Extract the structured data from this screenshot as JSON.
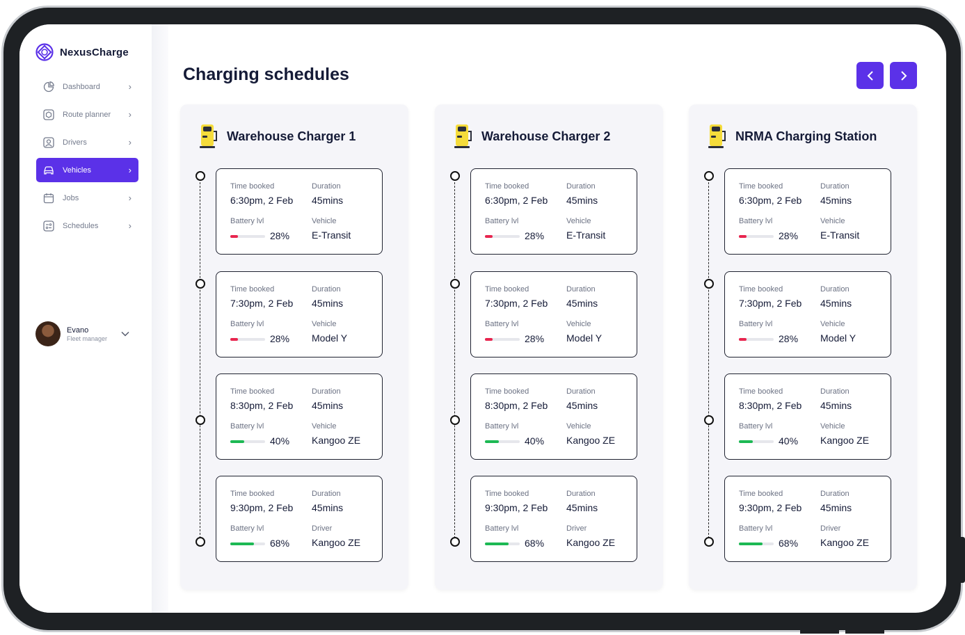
{
  "app": {
    "name": "NexusCharge"
  },
  "sidebar": {
    "items": [
      {
        "label": "Dashboard",
        "icon": "pie-chart-icon",
        "active": false
      },
      {
        "label": "Route planner",
        "icon": "route-icon",
        "active": false
      },
      {
        "label": "Drivers",
        "icon": "user-icon",
        "active": false
      },
      {
        "label": "Vehicles",
        "icon": "car-icon",
        "active": true
      },
      {
        "label": "Jobs",
        "icon": "calendar-icon",
        "active": false
      },
      {
        "label": "Schedules",
        "icon": "schedule-icon",
        "active": false
      }
    ],
    "user": {
      "name": "Evano",
      "role": "Fleet manager"
    }
  },
  "main": {
    "title": "Charging schedules",
    "colors": {
      "accent": "#5B31E8",
      "low": "#E8264F",
      "ok": "#1DB954",
      "charger": "#F5DC3B"
    },
    "columns": [
      {
        "title": "Warehouse Charger 1",
        "slots": [
          {
            "time_label": "Time booked",
            "time": "6:30pm, 2 Feb",
            "duration_label": "Duration",
            "duration": "45mins",
            "battery_label": "Battery lvl",
            "battery": "28%",
            "battery_level": 0.28,
            "vehicle_label": "Vehicle",
            "vehicle": "E-Transit"
          },
          {
            "time_label": "Time booked",
            "time": "7:30pm, 2 Feb",
            "duration_label": "Duration",
            "duration": "45mins",
            "battery_label": "Battery lvl",
            "battery": "28%",
            "battery_level": 0.28,
            "vehicle_label": "Vehicle",
            "vehicle": "Model Y"
          },
          {
            "time_label": "Time booked",
            "time": "8:30pm, 2 Feb",
            "duration_label": "Duration",
            "duration": "45mins",
            "battery_label": "Battery lvl",
            "battery": "40%",
            "battery_level": 0.4,
            "vehicle_label": "Vehicle",
            "vehicle": "Kangoo ZE"
          },
          {
            "time_label": "Time booked",
            "time": "9:30pm, 2 Feb",
            "duration_label": "Duration",
            "duration": "45mins",
            "battery_label": "Battery lvl",
            "battery": "68%",
            "battery_level": 0.68,
            "vehicle_label": "Driver",
            "vehicle": "Kangoo ZE"
          }
        ]
      },
      {
        "title": "Warehouse Charger 2",
        "slots": [
          {
            "time_label": "Time booked",
            "time": "6:30pm, 2 Feb",
            "duration_label": "Duration",
            "duration": "45mins",
            "battery_label": "Battery lvl",
            "battery": "28%",
            "battery_level": 0.28,
            "vehicle_label": "Vehicle",
            "vehicle": "E-Transit"
          },
          {
            "time_label": "Time booked",
            "time": "7:30pm, 2 Feb",
            "duration_label": "Duration",
            "duration": "45mins",
            "battery_label": "Battery lvl",
            "battery": "28%",
            "battery_level": 0.28,
            "vehicle_label": "Vehicle",
            "vehicle": "Model Y"
          },
          {
            "time_label": "Time booked",
            "time": "8:30pm, 2 Feb",
            "duration_label": "Duration",
            "duration": "45mins",
            "battery_label": "Battery lvl",
            "battery": "40%",
            "battery_level": 0.4,
            "vehicle_label": "Vehicle",
            "vehicle": "Kangoo ZE"
          },
          {
            "time_label": "Time booked",
            "time": "9:30pm, 2 Feb",
            "duration_label": "Duration",
            "duration": "45mins",
            "battery_label": "Battery lvl",
            "battery": "68%",
            "battery_level": 0.68,
            "vehicle_label": "Driver",
            "vehicle": "Kangoo ZE"
          }
        ]
      },
      {
        "title": "NRMA Charging Station",
        "slots": [
          {
            "time_label": "Time booked",
            "time": "6:30pm, 2 Feb",
            "duration_label": "Duration",
            "duration": "45mins",
            "battery_label": "Battery lvl",
            "battery": "28%",
            "battery_level": 0.28,
            "vehicle_label": "Vehicle",
            "vehicle": "E-Transit"
          },
          {
            "time_label": "Time booked",
            "time": "7:30pm, 2 Feb",
            "duration_label": "Duration",
            "duration": "45mins",
            "battery_label": "Battery lvl",
            "battery": "28%",
            "battery_level": 0.28,
            "vehicle_label": "Vehicle",
            "vehicle": "Model Y"
          },
          {
            "time_label": "Time booked",
            "time": "8:30pm, 2 Feb",
            "duration_label": "Duration",
            "duration": "45mins",
            "battery_label": "Battery lvl",
            "battery": "40%",
            "battery_level": 0.4,
            "vehicle_label": "Vehicle",
            "vehicle": "Kangoo ZE"
          },
          {
            "time_label": "Time booked",
            "time": "9:30pm, 2 Feb",
            "duration_label": "Duration",
            "duration": "45mins",
            "battery_label": "Battery lvl",
            "battery": "68%",
            "battery_level": 0.68,
            "vehicle_label": "Driver",
            "vehicle": "Kangoo ZE"
          }
        ]
      }
    ]
  }
}
